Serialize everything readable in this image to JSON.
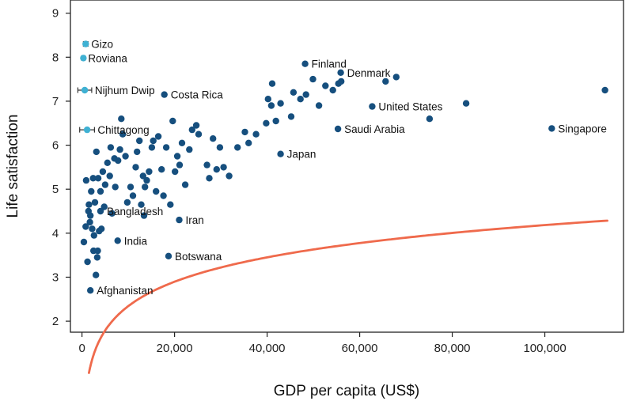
{
  "chart_data": {
    "type": "scatter",
    "xlabel": "GDP per capita (US$)",
    "ylabel": "Life satisfaction",
    "xlim": [
      -2500,
      117000
    ],
    "ylim": [
      1.75,
      9.3
    ],
    "xticks": [
      0,
      20000,
      40000,
      60000,
      80000,
      100000
    ],
    "xtick_labels": [
      "0",
      "20,000",
      "40,000",
      "60,000",
      "80,000",
      "100,000"
    ],
    "yticks": [
      2,
      3,
      4,
      5,
      6,
      7,
      8,
      9
    ],
    "ytick_labels": [
      "2",
      "3",
      "4",
      "5",
      "6",
      "7",
      "8",
      "9"
    ],
    "colors": {
      "country": "#164f7e",
      "community": "#3fb1d3",
      "fit": "#ef6a4c",
      "axis": "#222222"
    },
    "fit": {
      "type": "logarithmic",
      "a": 0.5,
      "b": 0.8,
      "x_start": 1500,
      "x_end": 113500
    },
    "labeled_countries": [
      {
        "name": "Finland",
        "x": 48200,
        "y": 7.85
      },
      {
        "name": "Denmark",
        "x": 55900,
        "y": 7.65
      },
      {
        "name": "Costa Rica",
        "x": 17800,
        "y": 7.15
      },
      {
        "name": "United States",
        "x": 62700,
        "y": 6.88
      },
      {
        "name": "Saudi Arabia",
        "x": 55300,
        "y": 6.37
      },
      {
        "name": "Singapore",
        "x": 101500,
        "y": 6.38
      },
      {
        "name": "Japan",
        "x": 42900,
        "y": 5.8
      },
      {
        "name": "Bangladesh",
        "x": 4000,
        "y": 4.5
      },
      {
        "name": "Iran",
        "x": 21000,
        "y": 4.3
      },
      {
        "name": "India",
        "x": 7700,
        "y": 3.83
      },
      {
        "name": "Botswana",
        "x": 18700,
        "y": 3.48
      },
      {
        "name": "Afghanistan",
        "x": 1800,
        "y": 2.7
      }
    ],
    "communities": [
      {
        "name": "Gizo",
        "x": 800,
        "y": 8.3,
        "xerr": 500
      },
      {
        "name": "Roviana",
        "x": 300,
        "y": 7.98,
        "xerr": 350
      },
      {
        "name": "Nijhum Dwip",
        "x": 600,
        "y": 7.25,
        "xerr": 1500
      },
      {
        "name": "Chittagong",
        "x": 1100,
        "y": 6.35,
        "xerr": 1600
      }
    ],
    "countries": [
      [
        400,
        3.8
      ],
      [
        800,
        4.15
      ],
      [
        1200,
        3.35
      ],
      [
        1500,
        4.65
      ],
      [
        1800,
        4.4
      ],
      [
        2200,
        4.1
      ],
      [
        2500,
        3.6
      ],
      [
        3000,
        3.05
      ],
      [
        3300,
        3.45
      ],
      [
        3700,
        4.05
      ],
      [
        900,
        5.2
      ],
      [
        1400,
        4.5
      ],
      [
        2000,
        4.95
      ],
      [
        2400,
        5.25
      ],
      [
        2800,
        4.7
      ],
      [
        3100,
        5.85
      ],
      [
        3500,
        5.25
      ],
      [
        4000,
        4.95
      ],
      [
        4500,
        5.4
      ],
      [
        5000,
        5.1
      ],
      [
        1700,
        4.25
      ],
      [
        2600,
        3.95
      ],
      [
        3400,
        3.6
      ],
      [
        4200,
        4.1
      ],
      [
        4800,
        4.6
      ],
      [
        5500,
        5.6
      ],
      [
        6000,
        5.3
      ],
      [
        6500,
        4.45
      ],
      [
        7200,
        5.05
      ],
      [
        7800,
        5.65
      ],
      [
        6200,
        5.95
      ],
      [
        7000,
        5.7
      ],
      [
        8200,
        5.9
      ],
      [
        8800,
        6.25
      ],
      [
        9400,
        5.75
      ],
      [
        8500,
        6.6
      ],
      [
        9800,
        4.7
      ],
      [
        10500,
        5.05
      ],
      [
        11000,
        4.85
      ],
      [
        11600,
        5.5
      ],
      [
        11900,
        5.85
      ],
      [
        12400,
        6.1
      ],
      [
        12800,
        4.65
      ],
      [
        13200,
        5.3
      ],
      [
        13600,
        5.05
      ],
      [
        14000,
        5.2
      ],
      [
        14500,
        5.4
      ],
      [
        15100,
        5.95
      ],
      [
        15400,
        6.1
      ],
      [
        16000,
        4.95
      ],
      [
        16500,
        6.2
      ],
      [
        17200,
        5.45
      ],
      [
        17600,
        4.85
      ],
      [
        18200,
        5.95
      ],
      [
        19100,
        4.65
      ],
      [
        19600,
        6.55
      ],
      [
        20100,
        5.4
      ],
      [
        20600,
        5.75
      ],
      [
        21100,
        5.55
      ],
      [
        21600,
        6.05
      ],
      [
        22300,
        5.1
      ],
      [
        23200,
        5.9
      ],
      [
        23800,
        6.35
      ],
      [
        24700,
        6.45
      ],
      [
        25200,
        6.25
      ],
      [
        27000,
        5.55
      ],
      [
        27500,
        5.25
      ],
      [
        28300,
        6.15
      ],
      [
        29100,
        5.45
      ],
      [
        29800,
        5.95
      ],
      [
        30600,
        5.5
      ],
      [
        31800,
        5.3
      ],
      [
        33600,
        5.95
      ],
      [
        35200,
        6.3
      ],
      [
        36000,
        6.05
      ],
      [
        37600,
        6.25
      ],
      [
        39800,
        6.5
      ],
      [
        40200,
        7.05
      ],
      [
        40900,
        6.9
      ],
      [
        41100,
        7.4
      ],
      [
        41900,
        6.55
      ],
      [
        42900,
        6.95
      ],
      [
        45200,
        6.65
      ],
      [
        45700,
        7.2
      ],
      [
        47200,
        7.05
      ],
      [
        48400,
        7.15
      ],
      [
        49900,
        7.5
      ],
      [
        51200,
        6.9
      ],
      [
        52600,
        7.35
      ],
      [
        54200,
        7.25
      ],
      [
        55400,
        7.4
      ],
      [
        56000,
        7.45
      ],
      [
        65600,
        7.45
      ],
      [
        67900,
        7.55
      ],
      [
        75100,
        6.6
      ],
      [
        83000,
        6.95
      ],
      [
        113000,
        7.25
      ],
      [
        13400,
        4.4
      ]
    ]
  }
}
